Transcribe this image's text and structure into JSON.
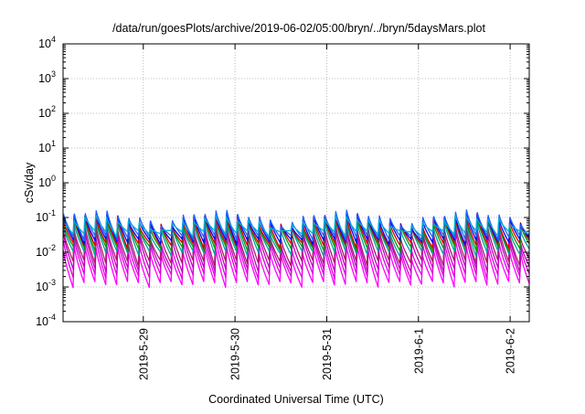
{
  "chart_data": {
    "type": "line",
    "title": "/data/run/goesPlots/archive/2019-06-02/05:00/bryn/../bryn/5daysMars.plot",
    "xlabel": "Coordinated Universal Time (UTC)",
    "ylabel": "cSv/day",
    "y_scale": "log",
    "ylim": [
      0.0001,
      10000
    ],
    "xlim": [
      "2019-05-28T03:00",
      "2019-06-02T05:00"
    ],
    "grid": true,
    "legend": "none",
    "y_ticks": [
      {
        "base": "10",
        "exp": "-4",
        "value": 0.0001
      },
      {
        "base": "10",
        "exp": "-3",
        "value": 0.001
      },
      {
        "base": "10",
        "exp": "-2",
        "value": 0.01
      },
      {
        "base": "10",
        "exp": "-1",
        "value": 0.1
      },
      {
        "base": "10",
        "exp": "0",
        "value": 1
      },
      {
        "base": "10",
        "exp": "1",
        "value": 10
      },
      {
        "base": "10",
        "exp": "2",
        "value": 100
      },
      {
        "base": "10",
        "exp": "3",
        "value": 1000
      },
      {
        "base": "10",
        "exp": "4",
        "value": 10000
      }
    ],
    "x_ticks": [
      {
        "label": "2019-5-29",
        "date": "2019-05-29T00:00"
      },
      {
        "label": "2019-5-30",
        "date": "2019-05-30T00:00"
      },
      {
        "label": "2019-5-31",
        "date": "2019-05-31T00:00"
      },
      {
        "label": "2019-6-1",
        "date": "2019-06-01T00:00"
      },
      {
        "label": "2019-6-2",
        "date": "2019-06-02T00:00"
      }
    ],
    "cycle_hours": 2.85,
    "series": [
      {
        "color": "#ff00ff",
        "peak": 0.012,
        "trough": 0.0012
      },
      {
        "color": "#e000e0",
        "peak": 0.02,
        "trough": 0.002
      },
      {
        "color": "#c000c0",
        "peak": 0.03,
        "trough": 0.003
      },
      {
        "color": "#b01870",
        "peak": 0.045,
        "trough": 0.005
      },
      {
        "color": "#00a0a0",
        "peak": 0.06,
        "trough": 0.009
      },
      {
        "color": "#009900",
        "peak": 0.07,
        "trough": 0.012
      },
      {
        "color": "#e00000",
        "peak": 0.085,
        "trough": 0.016
      },
      {
        "color": "#0000ff",
        "peak": 0.095,
        "trough": 0.02
      },
      {
        "color": "#2060ff",
        "peak": 0.11,
        "trough": 0.025
      },
      {
        "color": "#00b0d0",
        "peak": 0.08,
        "trough": 0.035
      }
    ]
  }
}
